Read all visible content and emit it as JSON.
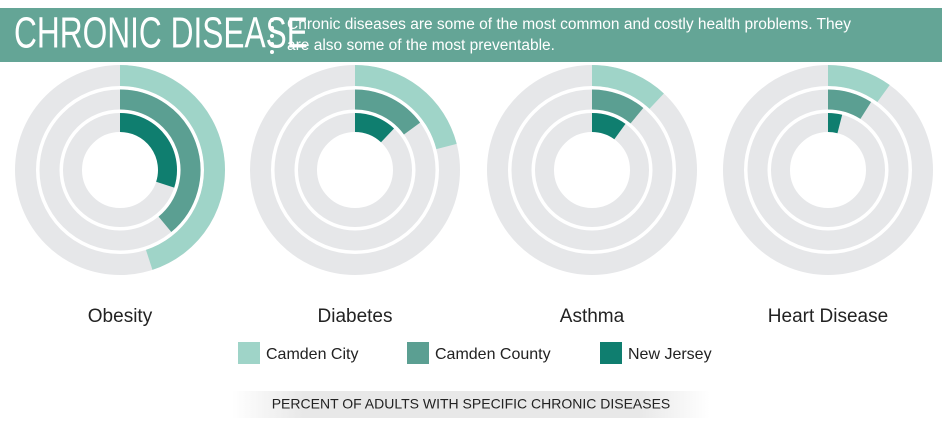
{
  "chart_data": {
    "type": "radial-bar",
    "title": "CHRONIC DISEASE",
    "subtitle": [
      "Chronic diseases are some of the most common and costly health problems.  They",
      "are also some of the most preventable."
    ],
    "caption": "PERCENT OF ADULTS WITH SPECIFIC CHRONIC DISEASES",
    "categories": [
      "Obesity",
      "Diabetes",
      "Asthma",
      "Heart Disease"
    ],
    "ylim": [
      0,
      100
    ],
    "series": [
      {
        "name": "Camden City",
        "color": "#9fd4c8",
        "values": [
          45,
          21,
          12,
          10
        ]
      },
      {
        "name": "Camden County",
        "color": "#5b9f92",
        "values": [
          39,
          15,
          11,
          9
        ]
      },
      {
        "name": "New Jersey",
        "color": "#0f7e6f",
        "values": [
          30,
          12,
          10,
          4
        ]
      }
    ]
  }
}
